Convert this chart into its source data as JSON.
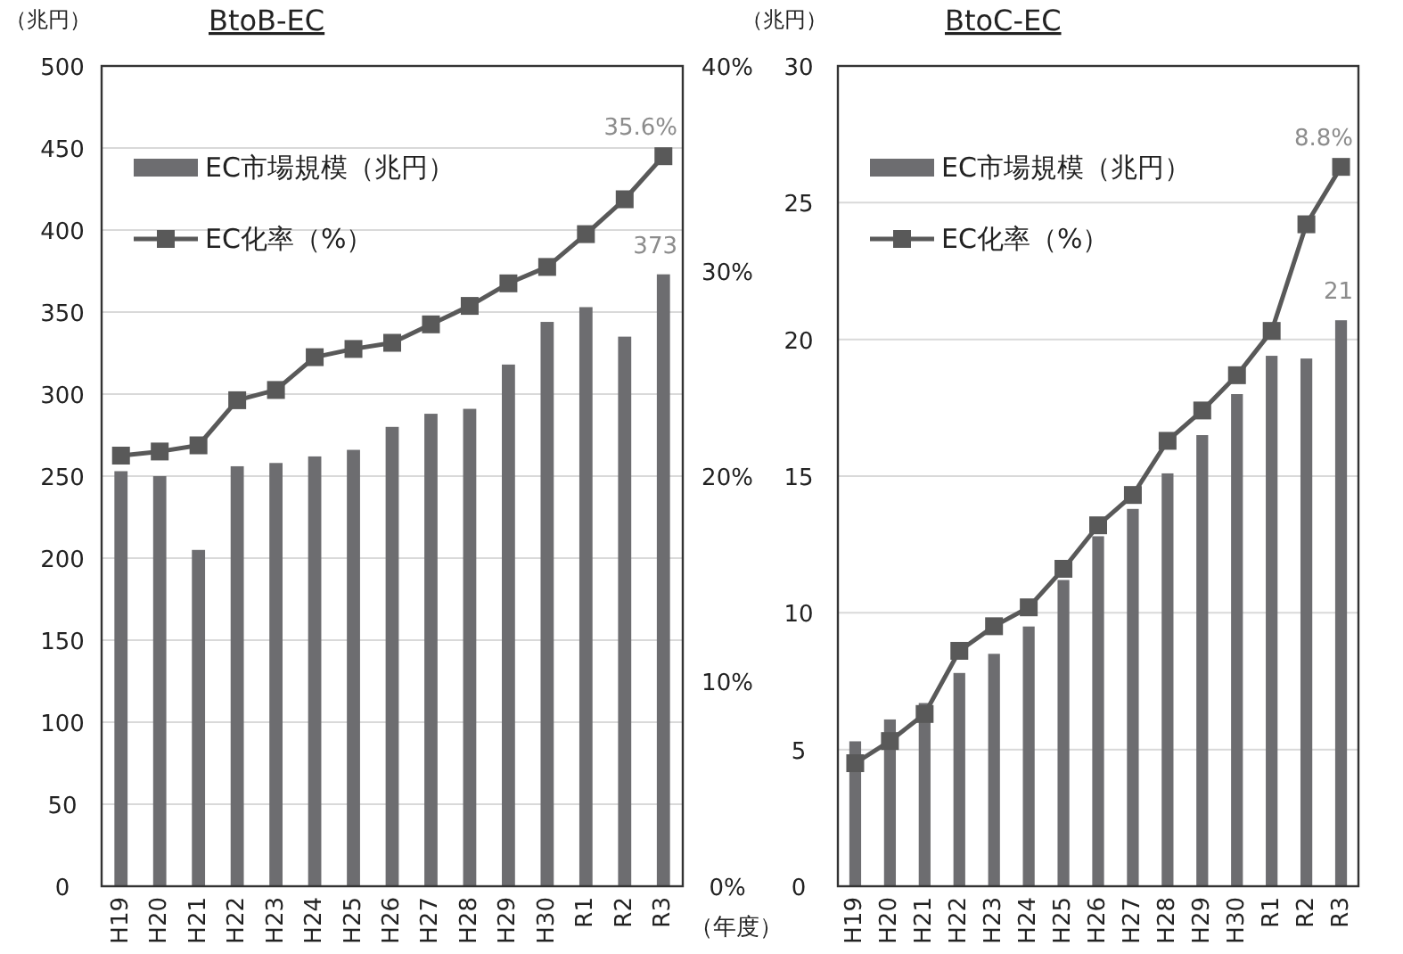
{
  "chart_data": [
    {
      "type": "bar",
      "title": "BtoB-EC",
      "ylabel": "（兆円）",
      "xlabel": "（年度）",
      "legend": "top left",
      "grid": "y",
      "categories": [
        "H19",
        "H20",
        "H21",
        "H22",
        "H23",
        "H24",
        "H25",
        "H26",
        "H27",
        "H28",
        "H29",
        "H30",
        "R1",
        "R2",
        "R3"
      ],
      "ylim": [
        0,
        500
      ],
      "yticks": [
        0,
        50,
        100,
        150,
        200,
        250,
        300,
        350,
        400,
        450,
        500
      ],
      "y2lim": [
        0,
        40
      ],
      "y2ticks": [
        {
          "value": 0,
          "label": "0%"
        },
        {
          "value": 10,
          "label": "10%"
        },
        {
          "value": 20,
          "label": "20%"
        },
        {
          "value": 30,
          "label": "30%"
        },
        {
          "value": 40,
          "label": "40%"
        }
      ],
      "series": [
        {
          "name": "EC市場規模（兆円）",
          "color": "#6d6d70",
          "values": [
            253,
            250,
            205,
            256,
            258,
            262,
            266,
            280,
            288,
            291,
            318,
            344,
            353,
            335,
            373
          ],
          "value_labels": [
            null,
            null,
            null,
            null,
            null,
            null,
            null,
            null,
            null,
            null,
            null,
            null,
            null,
            null,
            "373"
          ]
        },
        {
          "name": "EC化率（%）",
          "type": "line",
          "axis": "y2",
          "marker": "square",
          "color": "#595959",
          "values": [
            21.0,
            21.2,
            21.5,
            23.7,
            24.2,
            25.8,
            26.2,
            26.5,
            27.4,
            28.3,
            29.4,
            30.2,
            31.8,
            33.5,
            35.6
          ],
          "value_labels": [
            null,
            null,
            null,
            null,
            null,
            null,
            null,
            null,
            null,
            null,
            null,
            null,
            null,
            null,
            "35.6%"
          ]
        }
      ]
    },
    {
      "type": "bar",
      "title": "BtoC-EC",
      "ylabel": "（兆円）",
      "legend": "top left",
      "grid": "y",
      "categories": [
        "H19",
        "H20",
        "H21",
        "H22",
        "H23",
        "H24",
        "H25",
        "H26",
        "H27",
        "H28",
        "H29",
        "H30",
        "R1",
        "R2",
        "R3"
      ],
      "ylim": [
        0,
        30
      ],
      "yticks": [
        0,
        5,
        10,
        15,
        20,
        25,
        30
      ],
      "y2lim": [
        0,
        10
      ],
      "series": [
        {
          "name": "EC市場規模（兆円）",
          "color": "#6d6d70",
          "values": [
            5.3,
            6.1,
            6.7,
            7.8,
            8.5,
            9.5,
            11.2,
            12.8,
            13.8,
            15.1,
            16.5,
            18.0,
            19.4,
            19.3,
            20.7
          ],
          "value_labels": [
            null,
            null,
            null,
            null,
            null,
            null,
            null,
            null,
            null,
            null,
            null,
            null,
            null,
            null,
            "21"
          ]
        },
        {
          "name": "EC化率（%）",
          "type": "line",
          "axis": "y2",
          "marker": "square",
          "color": "#595959",
          "values": [
            1.5,
            1.77,
            2.1,
            2.87,
            3.17,
            3.4,
            3.87,
            4.4,
            4.77,
            5.43,
            5.8,
            6.23,
            6.77,
            8.07,
            8.77
          ],
          "value_labels": [
            null,
            null,
            null,
            null,
            null,
            null,
            null,
            null,
            null,
            null,
            null,
            null,
            null,
            null,
            "8.8%"
          ]
        }
      ]
    }
  ]
}
